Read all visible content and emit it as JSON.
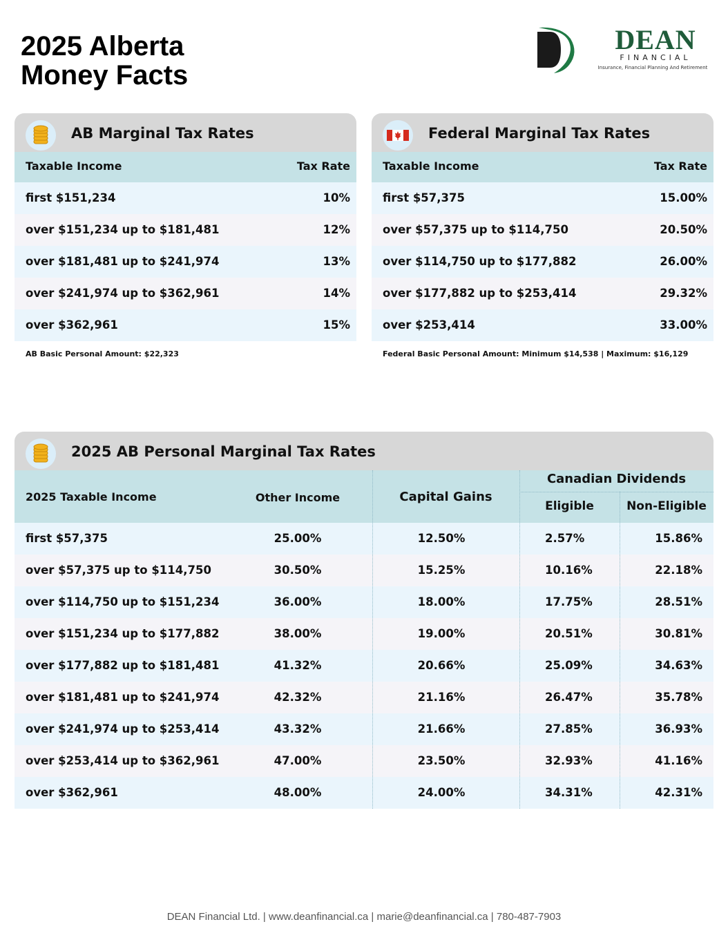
{
  "page": {
    "title_line1": "2025 Alberta",
    "title_line2": "Money Facts"
  },
  "logo": {
    "name": "DEAN",
    "sub": "FINANCIAL",
    "tagline": "Insurance, Financial Planning And Retirement",
    "brand_color": "#1f5c3a"
  },
  "ab_table": {
    "title": "AB Marginal Tax Rates",
    "icon": "coins-icon",
    "col_income": "Taxable Income",
    "col_rate": "Tax Rate",
    "rows": [
      {
        "income": "first $151,234",
        "rate": "10%"
      },
      {
        "income": "over $151,234 up to $181,481",
        "rate": "12%"
      },
      {
        "income": "over $181,481 up to $241,974",
        "rate": "13%"
      },
      {
        "income": "over $241,974 up to $362,961",
        "rate": "14%"
      },
      {
        "income": "over $362,961",
        "rate": "15%"
      }
    ],
    "note": "AB Basic Personal Amount:  $22,323"
  },
  "fed_table": {
    "title": "Federal Marginal Tax Rates",
    "icon": "canada-flag-icon",
    "col_income": "Taxable Income",
    "col_rate": "Tax Rate",
    "rows": [
      {
        "income": "first $57,375",
        "rate": "15.00%"
      },
      {
        "income": "over $57,375 up to $114,750",
        "rate": "20.50%"
      },
      {
        "income": "over $114,750 up to $177,882",
        "rate": "26.00%"
      },
      {
        "income": "over $177,882 up to $253,414",
        "rate": "29.32%"
      },
      {
        "income": "over $253,414",
        "rate": "33.00%"
      }
    ],
    "note": "Federal Basic Personal Amount:  Minimum $14,538 | Maximum: $16,129"
  },
  "personal_table": {
    "title": "2025 AB Personal Marginal Tax Rates",
    "icon": "coins-icon",
    "col_income": "2025 Taxable Income",
    "col_other": "Other Income",
    "col_gains": "Capital Gains",
    "col_dividends": "Canadian Dividends",
    "col_eligible": "Eligible",
    "col_non_eligible": "Non-Eligible",
    "rows": [
      {
        "income": "first $57,375",
        "other": "25.00%",
        "gains": "12.50%",
        "eligible": "2.57%",
        "non_eligible": "15.86%"
      },
      {
        "income": "over $57,375 up to $114,750",
        "other": "30.50%",
        "gains": "15.25%",
        "eligible": "10.16%",
        "non_eligible": "22.18%"
      },
      {
        "income": "over $114,750 up to $151,234",
        "other": "36.00%",
        "gains": "18.00%",
        "eligible": "17.75%",
        "non_eligible": "28.51%"
      },
      {
        "income": "over $151,234 up to $177,882",
        "other": "38.00%",
        "gains": "19.00%",
        "eligible": "20.51%",
        "non_eligible": "30.81%"
      },
      {
        "income": "over $177,882 up to $181,481",
        "other": "41.32%",
        "gains": "20.66%",
        "eligible": "25.09%",
        "non_eligible": "34.63%"
      },
      {
        "income": "over $181,481 up to $241,974",
        "other": "42.32%",
        "gains": "21.16%",
        "eligible": "26.47%",
        "non_eligible": "35.78%"
      },
      {
        "income": "over $241,974 up to $253,414",
        "other": "43.32%",
        "gains": "21.66%",
        "eligible": "27.85%",
        "non_eligible": "36.93%"
      },
      {
        "income": "over $253,414 up to $362,961",
        "other": "47.00%",
        "gains": "23.50%",
        "eligible": "32.93%",
        "non_eligible": "41.16%"
      },
      {
        "income": "over $362,961",
        "other": "48.00%",
        "gains": "24.00%",
        "eligible": "34.31%",
        "non_eligible": "42.31%"
      }
    ]
  },
  "footer": {
    "text": "DEAN Financial Ltd. | www.deanfinancial.ca | marie@deanfinancial.ca | 780-487-7903"
  },
  "colors": {
    "header_gray": "#d7d7d7",
    "column_header": "#c5e2e6",
    "row_light_blue": "#eaf5fc",
    "row_light_gray": "#f5f4f8"
  }
}
